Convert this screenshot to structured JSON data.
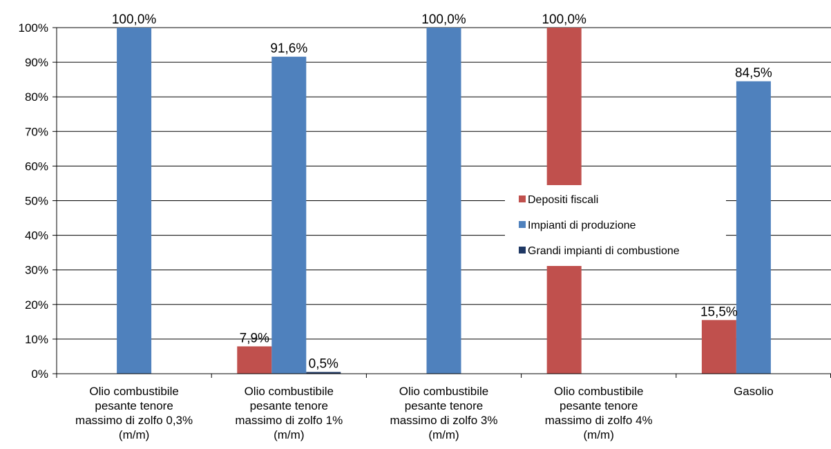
{
  "chart_data": {
    "type": "bar",
    "categories": [
      [
        "Olio combustibile",
        "pesante tenore",
        "massimo di zolfo 0,3%",
        "(m/m)"
      ],
      [
        "Olio combustibile",
        "pesante tenore",
        "massimo di zolfo 1%",
        "(m/m)"
      ],
      [
        "Olio combustibile",
        "pesante tenore",
        "massimo di zolfo 3%",
        "(m/m)"
      ],
      [
        "Olio combustibile",
        "pesante tenore",
        "massimo di zolfo 4%",
        "(m/m)"
      ],
      [
        "Gasolio"
      ]
    ],
    "series": [
      {
        "name": "Depositi fiscali",
        "color": "#C0504D",
        "values": [
          0,
          7.9,
          0,
          100.0,
          15.5
        ],
        "labels": [
          "",
          "7,9%",
          "",
          "100,0%",
          "15,5%"
        ]
      },
      {
        "name": "Impianti di produzione",
        "color": "#4F81BD",
        "values": [
          100.0,
          91.6,
          100.0,
          0,
          84.5
        ],
        "labels": [
          "100,0%",
          "91,6%",
          "100,0%",
          "",
          "84,5%"
        ]
      },
      {
        "name": "Grandi impianti di combustione",
        "color": "#1F3864",
        "values": [
          0,
          0.5,
          0,
          0,
          0
        ],
        "labels": [
          "",
          "0,5%",
          "",
          "",
          ""
        ]
      }
    ],
    "ylim": [
      0,
      100
    ],
    "yticks": [
      "0%",
      "10%",
      "20%",
      "30%",
      "40%",
      "50%",
      "60%",
      "70%",
      "80%",
      "90%",
      "100%"
    ],
    "grid": true,
    "legend": "center-right"
  }
}
